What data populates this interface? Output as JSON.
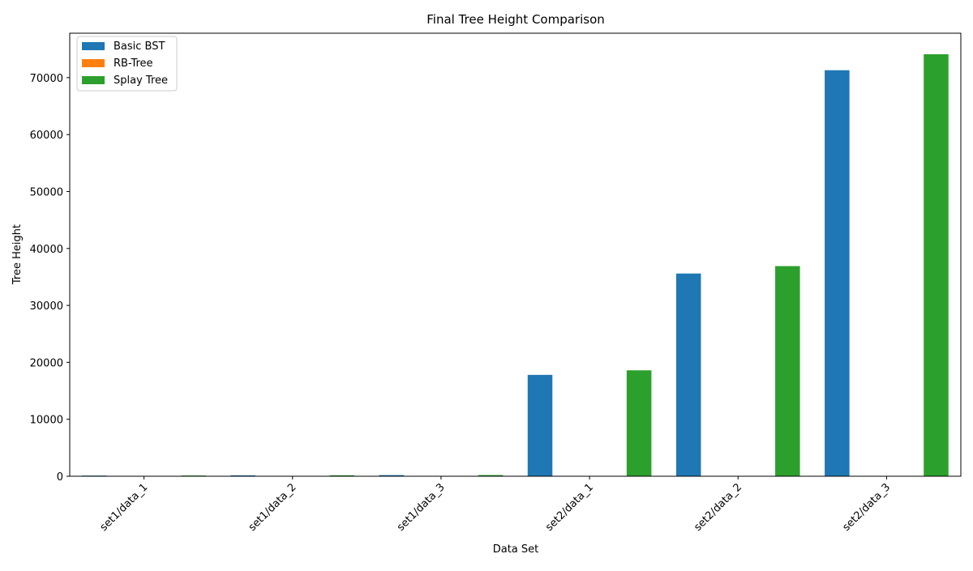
{
  "chart_data": {
    "type": "bar",
    "title": "Final Tree Height Comparison",
    "xlabel": "Data Set",
    "ylabel": "Tree Height",
    "categories": [
      "set1/data_1",
      "set1/data_2",
      "set1/data_3",
      "set2/data_1",
      "set2/data_2",
      "set2/data_3"
    ],
    "series": [
      {
        "name": "Basic BST",
        "color": "#1f77b4",
        "values": [
          120,
          160,
          200,
          17800,
          35600,
          71300
        ]
      },
      {
        "name": "RB-Tree",
        "color": "#ff7f0e",
        "values": [
          30,
          40,
          45,
          50,
          55,
          60
        ]
      },
      {
        "name": "Splay Tree",
        "color": "#2ca02c",
        "values": [
          130,
          170,
          210,
          18600,
          36900,
          74100
        ]
      }
    ],
    "ylim": [
      0,
      77800
    ],
    "yticks": [
      0,
      10000,
      20000,
      30000,
      40000,
      50000,
      60000,
      70000
    ],
    "ytick_labels": [
      "0",
      "10000",
      "20000",
      "30000",
      "40000",
      "50000",
      "60000",
      "70000"
    ],
    "grid": false,
    "legend_position": "top-left",
    "xtick_rotation": "45"
  }
}
